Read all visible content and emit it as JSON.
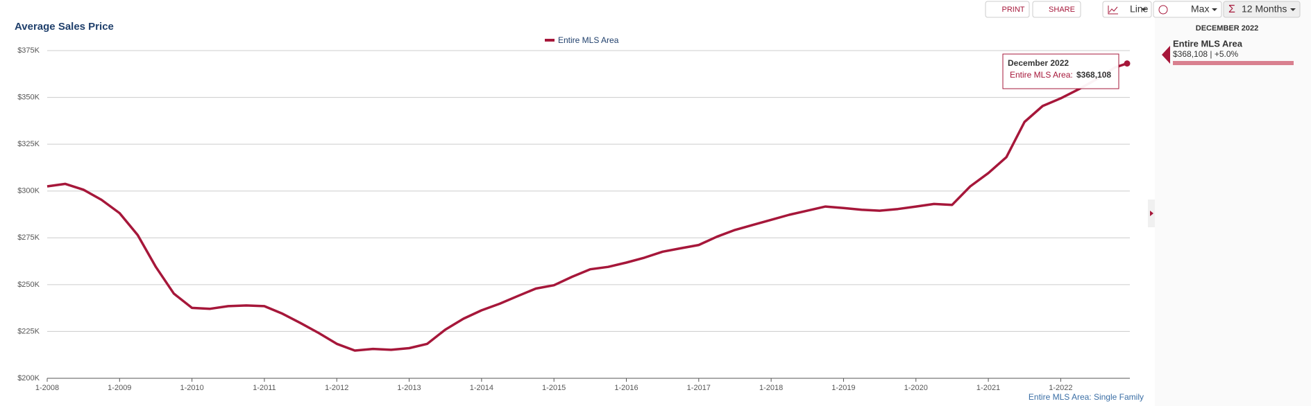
{
  "chart_data": {
    "type": "line",
    "title": "Average Sales Price",
    "x": [
      "1-2008",
      "4-2008",
      "7-2008",
      "10-2008",
      "1-2009",
      "4-2009",
      "7-2009",
      "10-2009",
      "1-2010",
      "4-2010",
      "7-2010",
      "10-2010",
      "1-2011",
      "4-2011",
      "7-2011",
      "10-2011",
      "1-2012",
      "4-2012",
      "7-2012",
      "10-2012",
      "1-2013",
      "4-2013",
      "7-2013",
      "10-2013",
      "1-2014",
      "4-2014",
      "7-2014",
      "10-2014",
      "1-2015",
      "4-2015",
      "7-2015",
      "10-2015",
      "1-2016",
      "4-2016",
      "7-2016",
      "10-2016",
      "1-2017",
      "4-2017",
      "7-2017",
      "10-2017",
      "1-2018",
      "4-2018",
      "7-2018",
      "10-2018",
      "1-2019",
      "4-2019",
      "7-2019",
      "10-2019",
      "1-2020",
      "4-2020",
      "7-2020",
      "10-2020",
      "1-2021",
      "4-2021",
      "7-2021",
      "10-2021",
      "1-2022",
      "4-2022",
      "7-2022",
      "10-2022",
      "12-2022"
    ],
    "series": [
      {
        "name": "Entire MLS Area",
        "color": "#a6173a",
        "values": [
          302500,
          303800,
          300700,
          295300,
          288200,
          276500,
          259500,
          245200,
          237600,
          237100,
          238500,
          238900,
          238500,
          234500,
          229500,
          224200,
          218400,
          214800,
          215700,
          215200,
          216100,
          218400,
          226000,
          231800,
          236300,
          239800,
          243900,
          247900,
          249700,
          254200,
          258200,
          259500,
          261800,
          264400,
          267600,
          269400,
          271200,
          275600,
          279200,
          281900,
          284600,
          287300,
          289500,
          291700,
          290900,
          290000,
          289500,
          290400,
          291700,
          293100,
          292600,
          302500,
          309600,
          318100,
          336900,
          345400,
          349500,
          354400,
          359800,
          366000,
          368108
        ]
      }
    ],
    "xlim": [
      "1-2008",
      "12-2022"
    ],
    "xticks": [
      "1-2008",
      "1-2009",
      "1-2010",
      "1-2011",
      "1-2012",
      "1-2013",
      "1-2014",
      "1-2015",
      "1-2016",
      "1-2017",
      "1-2018",
      "1-2019",
      "1-2020",
      "1-2021",
      "1-2022"
    ],
    "ylim": [
      200000,
      375000
    ],
    "yticks": [
      {
        "value": 200000,
        "label": "$200K"
      },
      {
        "value": 225000,
        "label": "$225K"
      },
      {
        "value": 250000,
        "label": "$250K"
      },
      {
        "value": 275000,
        "label": "$275K"
      },
      {
        "value": 300000,
        "label": "$300K"
      },
      {
        "value": 325000,
        "label": "$325K"
      },
      {
        "value": 350000,
        "label": "$350K"
      },
      {
        "value": 375000,
        "label": "$375K"
      }
    ],
    "grid": true,
    "tooltip": {
      "title": "December 2022",
      "label": "Entire MLS Area:",
      "value": "$368,108"
    },
    "footer": "Entire MLS Area: Single Family"
  },
  "toolbar": {
    "print": "PRINT",
    "share": "SHARE",
    "chart_type": "Line",
    "range": "Max",
    "period": "12 Months"
  },
  "sidebar": {
    "date": "DECEMBER 2022",
    "name": "Entire MLS Area",
    "detail": "$368,108 | +5.0%"
  }
}
